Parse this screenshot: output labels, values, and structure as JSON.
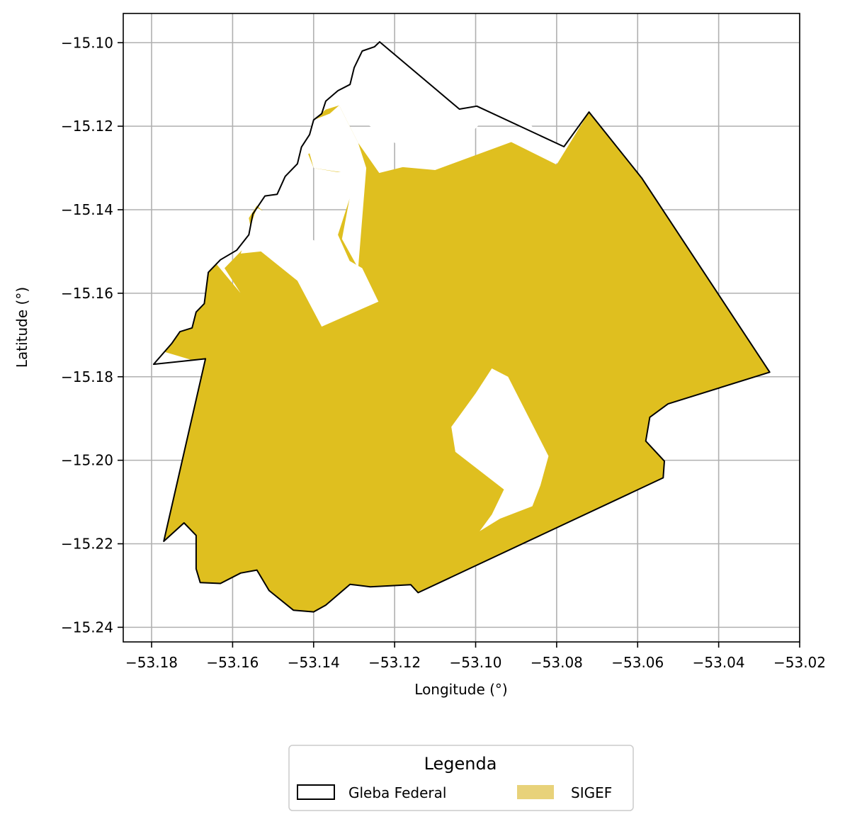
{
  "chart_data": {
    "type": "map",
    "xlabel": "Longitude (°)",
    "ylabel": "Latitude (°)",
    "xlim": [
      -53.187,
      -53.02
    ],
    "ylim": [
      -15.2435,
      -15.093
    ],
    "x_ticks": [
      -53.18,
      -53.16,
      -53.14,
      -53.12,
      -53.1,
      -53.08,
      -53.06,
      -53.04,
      -53.02
    ],
    "x_tick_labels": [
      "−53.18",
      "−53.16",
      "−53.14",
      "−53.12",
      "−53.10",
      "−53.08",
      "−53.06",
      "−53.04",
      "−53.02"
    ],
    "y_ticks": [
      -15.1,
      -15.12,
      -15.14,
      -15.16,
      -15.18,
      -15.2,
      -15.22,
      -15.24
    ],
    "y_tick_labels": [
      "−15.10",
      "−15.12",
      "−15.14",
      "−15.16",
      "−15.18",
      "−15.20",
      "−15.22",
      "−15.24"
    ],
    "grid": true,
    "legend": {
      "title": "Legenda",
      "placement": "bottom-center",
      "entries": [
        {
          "label": "Gleba Federal",
          "style": "outline",
          "color": "#000000"
        },
        {
          "label": "SIGEF",
          "style": "fill",
          "color": "#e8d27a"
        }
      ]
    },
    "colors": {
      "sigef_fill": "#dfbf1f",
      "gleba_outline": "#000000",
      "grid": "#b0b0b0"
    },
    "layers": [
      {
        "name": "Gleba Federal",
        "type": "polygon-outline",
        "coordinates": [
          [
            -53.1237,
            -15.0998
          ],
          [
            -53.104,
            -15.1159
          ],
          [
            -53.0997,
            -15.1152
          ],
          [
            -53.0782,
            -15.1249
          ],
          [
            -53.072,
            -15.1166
          ],
          [
            -53.059,
            -15.1324
          ],
          [
            -53.0274,
            -15.1789
          ],
          [
            -53.0525,
            -15.1865
          ],
          [
            -53.057,
            -15.1897
          ],
          [
            -53.058,
            -15.1954
          ],
          [
            -53.0534,
            -15.2002
          ],
          [
            -53.0537,
            -15.2042
          ],
          [
            -53.1142,
            -15.2317
          ],
          [
            -53.116,
            -15.2298
          ],
          [
            -53.126,
            -15.2303
          ],
          [
            -53.131,
            -15.2297
          ],
          [
            -53.137,
            -15.2347
          ],
          [
            -53.14,
            -15.2363
          ],
          [
            -53.145,
            -15.2359
          ],
          [
            -53.151,
            -15.2312
          ],
          [
            -53.154,
            -15.2263
          ],
          [
            -53.158,
            -15.227
          ],
          [
            -53.163,
            -15.2295
          ],
          [
            -53.168,
            -15.2293
          ],
          [
            -53.169,
            -15.226
          ],
          [
            -53.169,
            -15.218
          ],
          [
            -53.172,
            -15.215
          ],
          [
            -53.177,
            -15.2194
          ],
          [
            -53.1667,
            -15.1757
          ],
          [
            -53.1795,
            -15.177
          ],
          [
            -53.175,
            -15.172
          ],
          [
            -53.173,
            -15.1692
          ],
          [
            -53.17,
            -15.1683
          ],
          [
            -53.169,
            -15.1645
          ],
          [
            -53.167,
            -15.1625
          ],
          [
            -53.166,
            -15.155
          ],
          [
            -53.163,
            -15.152
          ],
          [
            -53.159,
            -15.1497
          ],
          [
            -53.156,
            -15.146
          ],
          [
            -53.155,
            -15.141
          ],
          [
            -53.152,
            -15.1367
          ],
          [
            -53.149,
            -15.1363
          ],
          [
            -53.147,
            -15.132
          ],
          [
            -53.144,
            -15.129
          ],
          [
            -53.143,
            -15.125
          ],
          [
            -53.141,
            -15.122
          ],
          [
            -53.14,
            -15.1185
          ],
          [
            -53.138,
            -15.117
          ],
          [
            -53.137,
            -15.114
          ],
          [
            -53.134,
            -15.1115
          ],
          [
            -53.131,
            -15.11
          ],
          [
            -53.13,
            -15.106
          ],
          [
            -53.128,
            -15.102
          ],
          [
            -53.125,
            -15.101
          ],
          [
            -53.1237,
            -15.0998
          ]
        ]
      },
      {
        "name": "SIGEF",
        "type": "polygon-fill",
        "polygons": [
          [
            [
              -53.1337,
              -15.115
            ],
            [
              -53.129,
              -15.124
            ],
            [
              -53.1238,
              -15.1312
            ],
            [
              -53.118,
              -15.1298
            ],
            [
              -53.11,
              -15.1305
            ],
            [
              -53.0912,
              -15.1238
            ],
            [
              -53.08,
              -15.1292
            ],
            [
              -53.072,
              -15.1166
            ],
            [
              -53.059,
              -15.1324
            ],
            [
              -53.0274,
              -15.1789
            ],
            [
              -53.0525,
              -15.1865
            ],
            [
              -53.057,
              -15.1897
            ],
            [
              -53.058,
              -15.1954
            ],
            [
              -53.0534,
              -15.2002
            ],
            [
              -53.0537,
              -15.2042
            ],
            [
              -53.1142,
              -15.2317
            ],
            [
              -53.116,
              -15.2298
            ],
            [
              -53.126,
              -15.2303
            ],
            [
              -53.131,
              -15.2297
            ],
            [
              -53.137,
              -15.2347
            ],
            [
              -53.14,
              -15.2363
            ],
            [
              -53.145,
              -15.2359
            ],
            [
              -53.151,
              -15.2312
            ],
            [
              -53.154,
              -15.2263
            ],
            [
              -53.158,
              -15.227
            ],
            [
              -53.163,
              -15.2295
            ],
            [
              -53.168,
              -15.2293
            ],
            [
              -53.169,
              -15.226
            ],
            [
              -53.169,
              -15.218
            ],
            [
              -53.172,
              -15.215
            ],
            [
              -53.177,
              -15.2194
            ],
            [
              -53.1667,
              -15.1757
            ],
            [
              -53.17,
              -15.176
            ],
            [
              -53.177,
              -15.174
            ],
            [
              -53.175,
              -15.172
            ],
            [
              -53.173,
              -15.1692
            ],
            [
              -53.17,
              -15.1683
            ],
            [
              -53.169,
              -15.1645
            ],
            [
              -53.167,
              -15.1625
            ],
            [
              -53.166,
              -15.155
            ],
            [
              -53.164,
              -15.153
            ],
            [
              -53.158,
              -15.16
            ],
            [
              -53.162,
              -15.154
            ],
            [
              -53.155,
              -15.147
            ],
            [
              -53.156,
              -15.142
            ],
            [
              -53.154,
              -15.139
            ],
            [
              -53.142,
              -15.15
            ],
            [
              -53.137,
              -15.153
            ],
            [
              -53.128,
              -15.159
            ],
            [
              -53.134,
              -15.146
            ],
            [
              -53.129,
              -15.131
            ],
            [
              -53.134,
              -15.131
            ],
            [
              -53.14,
              -15.13
            ],
            [
              -53.142,
              -15.125
            ],
            [
              -53.141,
              -15.122
            ],
            [
              -53.14,
              -15.1185
            ],
            [
              -53.137,
              -15.116
            ],
            [
              -53.1337,
              -15.115
            ]
          ]
        ],
        "holes": [
          [
            [
              -53.154,
              -15.1395
            ],
            [
              -53.128,
              -15.154
            ],
            [
              -53.127,
              -15.156
            ],
            [
              -53.124,
              -15.162
            ],
            [
              -53.138,
              -15.168
            ],
            [
              -53.144,
              -15.157
            ],
            [
              -53.153,
              -15.15
            ],
            [
              -53.158,
              -15.1505
            ],
            [
              -53.154,
              -15.1395
            ]
          ],
          [
            [
              -53.146,
              -15.129
            ],
            [
              -53.141,
              -15.1265
            ],
            [
              -53.14,
              -15.13
            ],
            [
              -53.13,
              -15.1315
            ],
            [
              -53.133,
              -15.147
            ],
            [
              -53.129,
              -15.154
            ],
            [
              -53.127,
              -15.13
            ],
            [
              -53.129,
              -15.124
            ],
            [
              -53.1337,
              -15.115
            ],
            [
              -53.136,
              -15.117
            ],
            [
              -53.14,
              -15.1185
            ],
            [
              -53.141,
              -15.122
            ],
            [
              -53.143,
              -15.125
            ],
            [
              -53.146,
              -15.129
            ]
          ],
          [
            [
              -53.096,
              -15.178
            ],
            [
              -53.1,
              -15.184
            ],
            [
              -53.106,
              -15.192
            ],
            [
              -53.105,
              -15.198
            ],
            [
              -53.093,
              -15.207
            ],
            [
              -53.096,
              -15.213
            ],
            [
              -53.099,
              -15.217
            ],
            [
              -53.094,
              -15.214
            ],
            [
              -53.086,
              -15.211
            ],
            [
              -53.084,
              -15.206
            ],
            [
              -53.082,
              -15.199
            ],
            [
              -53.092,
              -15.18
            ],
            [
              -53.096,
              -15.178
            ]
          ],
          [
            [
              -53.0915,
              -15.112
            ],
            [
              -53.08,
              -15.129
            ],
            [
              -53.0782,
              -15.1249
            ],
            [
              -53.0997,
              -15.1152
            ],
            [
              -53.104,
              -15.1159
            ],
            [
              -53.1237,
              -15.0998
            ],
            [
              -53.125,
              -15.101
            ],
            [
              -53.128,
              -15.102
            ],
            [
              -53.13,
              -15.106
            ],
            [
              -53.131,
              -15.11
            ],
            [
              -53.1337,
              -15.115
            ],
            [
              -53.11,
              -15.1305
            ],
            [
              -53.0915,
              -15.112
            ]
          ]
        ]
      }
    ]
  }
}
